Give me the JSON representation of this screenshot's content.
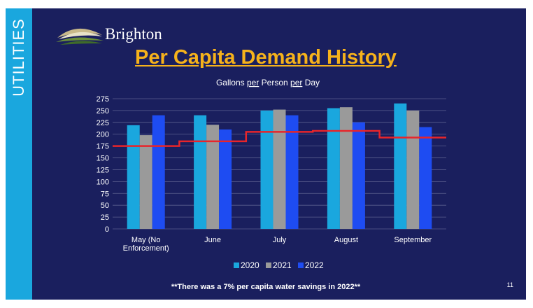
{
  "sidebar": {
    "label": "UTILITIES"
  },
  "logo": {
    "text": "Brighton"
  },
  "title": "Per Capita Demand History",
  "footnote": "**There was a 7% per capita water savings in 2022**",
  "page_number": "11",
  "colors": {
    "background": "#1a1f5e",
    "sidebar": "#1aa7de",
    "title": "#f6b21b",
    "series_2020": "#1aa7de",
    "series_2021": "#9a9a9a",
    "series_2022": "#1e4cf2",
    "step_line": "#e8252a",
    "gridline": "#5a5f8e"
  },
  "chart_data": {
    "type": "bar",
    "title_parts": [
      {
        "text": "Gallons ",
        "underline": false
      },
      {
        "text": "per",
        "underline": true
      },
      {
        "text": " Person ",
        "underline": false
      },
      {
        "text": "per",
        "underline": true
      },
      {
        "text": " Day",
        "underline": false
      }
    ],
    "categories": [
      [
        "May (No",
        "Enforcement)"
      ],
      [
        "June"
      ],
      [
        "July"
      ],
      [
        "August"
      ],
      [
        "September"
      ]
    ],
    "series": [
      {
        "name": "2020",
        "values": [
          219,
          240,
          250,
          255,
          265
        ]
      },
      {
        "name": "2021",
        "values": [
          198,
          220,
          252,
          257,
          250
        ]
      },
      {
        "name": "2022",
        "values": [
          240,
          210,
          240,
          225,
          215
        ]
      }
    ],
    "step_line": {
      "values": [
        175,
        185,
        205,
        207,
        193
      ]
    },
    "ylim": [
      0,
      275
    ],
    "yticks": [
      0,
      25,
      50,
      75,
      100,
      125,
      150,
      175,
      200,
      225,
      250,
      275
    ],
    "grid": true,
    "legend_position": "bottom"
  }
}
